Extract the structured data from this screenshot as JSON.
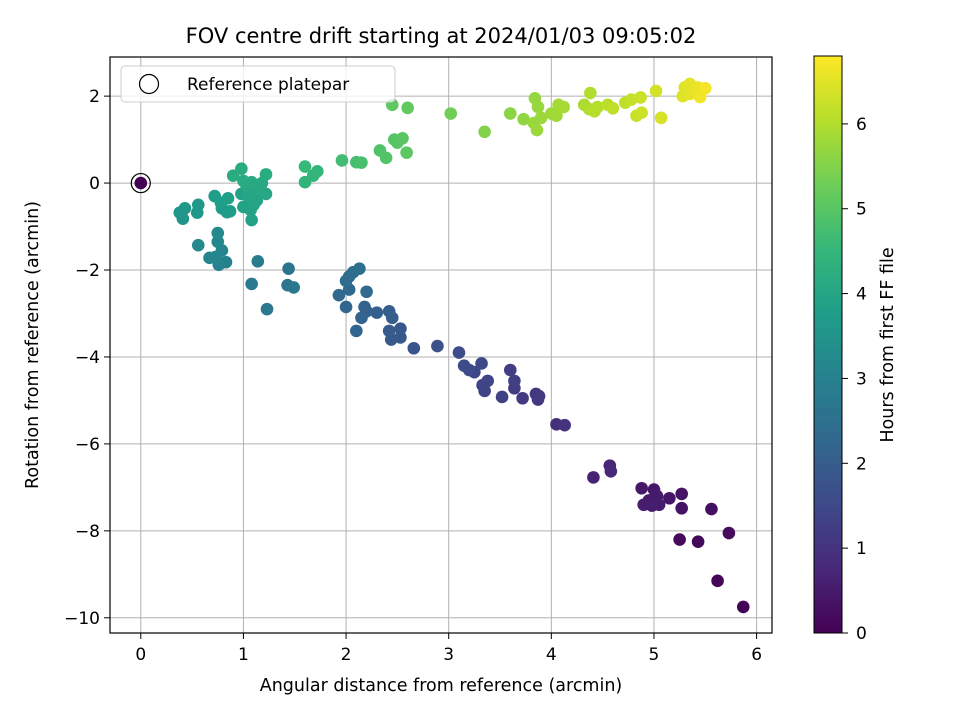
{
  "chart_data": {
    "type": "scatter",
    "title": "FOV centre drift starting at 2024/01/03 09:05:02",
    "xlabel": "Angular distance from reference (arcmin)",
    "ylabel": "Rotation from reference (arcmin)",
    "xlim": [
      -0.3,
      6.15
    ],
    "ylim": [
      -10.35,
      2.9
    ],
    "xticks": [
      0,
      1,
      2,
      3,
      4,
      5,
      6
    ],
    "yticks": [
      -10,
      -8,
      -6,
      -4,
      -2,
      0,
      2
    ],
    "grid": true,
    "legend": {
      "placement": "top-left",
      "entries": [
        "Reference platepar"
      ]
    },
    "colorbar": {
      "label": "Hours from first FF file",
      "range": [
        0,
        6.8
      ],
      "ticks": [
        0,
        1,
        2,
        3,
        4,
        5,
        6
      ],
      "colormap": "viridis"
    },
    "reference_point": {
      "x": 0,
      "y": 0,
      "color_value": 0
    },
    "points": [
      {
        "x": 5.87,
        "y": -9.75,
        "h": 0.05
      },
      {
        "x": 5.62,
        "y": -9.15,
        "h": 0.1
      },
      {
        "x": 5.43,
        "y": -8.25,
        "h": 0.15
      },
      {
        "x": 5.25,
        "y": -8.2,
        "h": 0.2
      },
      {
        "x": 5.73,
        "y": -8.05,
        "h": 0.22
      },
      {
        "x": 5.56,
        "y": -7.5,
        "h": 0.3
      },
      {
        "x": 5.27,
        "y": -7.48,
        "h": 0.33
      },
      {
        "x": 5.27,
        "y": -7.15,
        "h": 0.36
      },
      {
        "x": 5.15,
        "y": -7.25,
        "h": 0.4
      },
      {
        "x": 5.0,
        "y": -7.05,
        "h": 0.42
      },
      {
        "x": 4.88,
        "y": -7.02,
        "h": 0.45
      },
      {
        "x": 4.95,
        "y": -7.3,
        "h": 0.47
      },
      {
        "x": 5.03,
        "y": -7.2,
        "h": 0.5
      },
      {
        "x": 5.05,
        "y": -7.4,
        "h": 0.52
      },
      {
        "x": 4.9,
        "y": -7.4,
        "h": 0.55
      },
      {
        "x": 4.98,
        "y": -7.42,
        "h": 0.57
      },
      {
        "x": 4.41,
        "y": -6.77,
        "h": 0.65
      },
      {
        "x": 4.57,
        "y": -6.5,
        "h": 0.72
      },
      {
        "x": 4.58,
        "y": -6.63,
        "h": 0.78
      },
      {
        "x": 4.05,
        "y": -5.55,
        "h": 0.95
      },
      {
        "x": 4.13,
        "y": -5.57,
        "h": 1.0
      },
      {
        "x": 3.87,
        "y": -4.98,
        "h": 1.1
      },
      {
        "x": 3.85,
        "y": -4.85,
        "h": 1.13
      },
      {
        "x": 3.88,
        "y": -4.9,
        "h": 1.16
      },
      {
        "x": 3.72,
        "y": -4.95,
        "h": 1.2
      },
      {
        "x": 3.64,
        "y": -4.72,
        "h": 1.23
      },
      {
        "x": 3.6,
        "y": -4.3,
        "h": 1.26
      },
      {
        "x": 3.64,
        "y": -4.55,
        "h": 1.3
      },
      {
        "x": 3.52,
        "y": -4.92,
        "h": 1.33
      },
      {
        "x": 3.35,
        "y": -4.78,
        "h": 1.37
      },
      {
        "x": 3.33,
        "y": -4.65,
        "h": 1.4
      },
      {
        "x": 3.38,
        "y": -4.55,
        "h": 1.43
      },
      {
        "x": 3.25,
        "y": -4.35,
        "h": 1.46
      },
      {
        "x": 3.32,
        "y": -4.15,
        "h": 1.5
      },
      {
        "x": 3.2,
        "y": -4.3,
        "h": 1.53
      },
      {
        "x": 3.15,
        "y": -4.2,
        "h": 1.56
      },
      {
        "x": 3.1,
        "y": -3.9,
        "h": 1.6
      },
      {
        "x": 2.89,
        "y": -3.75,
        "h": 1.7
      },
      {
        "x": 2.66,
        "y": -3.8,
        "h": 1.8
      },
      {
        "x": 2.53,
        "y": -3.55,
        "h": 1.85
      },
      {
        "x": 2.53,
        "y": -3.35,
        "h": 1.88
      },
      {
        "x": 2.44,
        "y": -3.6,
        "h": 1.92
      },
      {
        "x": 2.42,
        "y": -3.4,
        "h": 1.95
      },
      {
        "x": 2.45,
        "y": -3.1,
        "h": 2.0
      },
      {
        "x": 2.42,
        "y": -2.95,
        "h": 2.03
      },
      {
        "x": 2.3,
        "y": -2.98,
        "h": 2.07
      },
      {
        "x": 2.2,
        "y": -2.95,
        "h": 2.1
      },
      {
        "x": 2.18,
        "y": -2.85,
        "h": 2.13
      },
      {
        "x": 2.15,
        "y": -3.1,
        "h": 2.17
      },
      {
        "x": 2.1,
        "y": -3.4,
        "h": 2.2
      },
      {
        "x": 2.0,
        "y": -2.85,
        "h": 2.23
      },
      {
        "x": 1.93,
        "y": -2.58,
        "h": 2.27
      },
      {
        "x": 2.03,
        "y": -2.45,
        "h": 2.3
      },
      {
        "x": 2.2,
        "y": -2.5,
        "h": 2.33
      },
      {
        "x": 2.03,
        "y": -2.15,
        "h": 2.37
      },
      {
        "x": 2.0,
        "y": -2.25,
        "h": 2.4
      },
      {
        "x": 2.07,
        "y": -2.05,
        "h": 2.43
      },
      {
        "x": 2.13,
        "y": -1.97,
        "h": 2.47
      },
      {
        "x": 1.44,
        "y": -1.97,
        "h": 2.6
      },
      {
        "x": 1.43,
        "y": -2.35,
        "h": 2.65
      },
      {
        "x": 1.49,
        "y": -2.4,
        "h": 2.7
      },
      {
        "x": 1.23,
        "y": -2.9,
        "h": 2.75
      },
      {
        "x": 1.08,
        "y": -2.32,
        "h": 2.8
      },
      {
        "x": 1.14,
        "y": -1.8,
        "h": 2.85
      },
      {
        "x": 0.83,
        "y": -1.82,
        "h": 3.0
      },
      {
        "x": 0.76,
        "y": -1.88,
        "h": 3.03
      },
      {
        "x": 0.79,
        "y": -1.55,
        "h": 3.07
      },
      {
        "x": 0.67,
        "y": -1.72,
        "h": 3.1
      },
      {
        "x": 0.73,
        "y": -1.7,
        "h": 3.13
      },
      {
        "x": 0.75,
        "y": -1.35,
        "h": 3.17
      },
      {
        "x": 0.75,
        "y": -1.15,
        "h": 3.2
      },
      {
        "x": 0.56,
        "y": -1.43,
        "h": 3.25
      },
      {
        "x": 0.41,
        "y": -0.82,
        "h": 3.5
      },
      {
        "x": 0.38,
        "y": -0.68,
        "h": 3.55
      },
      {
        "x": 0.43,
        "y": -0.58,
        "h": 3.6
      },
      {
        "x": 0.55,
        "y": -0.68,
        "h": 3.62
      },
      {
        "x": 0.56,
        "y": -0.5,
        "h": 3.65
      },
      {
        "x": 0.79,
        "y": -0.58,
        "h": 3.7
      },
      {
        "x": 0.84,
        "y": -0.67,
        "h": 3.72
      },
      {
        "x": 0.87,
        "y": -0.65,
        "h": 3.75
      },
      {
        "x": 0.72,
        "y": -0.3,
        "h": 3.78
      },
      {
        "x": 0.78,
        "y": -0.45,
        "h": 3.8
      },
      {
        "x": 0.85,
        "y": -0.35,
        "h": 3.83
      },
      {
        "x": 0.98,
        "y": -0.25,
        "h": 3.86
      },
      {
        "x": 1.03,
        "y": -0.15,
        "h": 3.89
      },
      {
        "x": 1.08,
        "y": -0.85,
        "h": 3.9
      },
      {
        "x": 1.0,
        "y": -0.55,
        "h": 3.92
      },
      {
        "x": 1.07,
        "y": -0.62,
        "h": 3.94
      },
      {
        "x": 1.1,
        "y": -0.5,
        "h": 3.96
      },
      {
        "x": 1.13,
        "y": -0.4,
        "h": 3.98
      },
      {
        "x": 1.05,
        "y": -0.3,
        "h": 4.0
      },
      {
        "x": 1.12,
        "y": -0.2,
        "h": 4.02
      },
      {
        "x": 1.17,
        "y": -0.15,
        "h": 4.04
      },
      {
        "x": 1.22,
        "y": -0.25,
        "h": 4.06
      },
      {
        "x": 1.18,
        "y": 0.0,
        "h": 4.08
      },
      {
        "x": 1.08,
        "y": 0.02,
        "h": 4.1
      },
      {
        "x": 1.03,
        "y": -0.05,
        "h": 4.12
      },
      {
        "x": 1.0,
        "y": 0.05,
        "h": 4.14
      },
      {
        "x": 0.98,
        "y": 0.33,
        "h": 4.16
      },
      {
        "x": 0.9,
        "y": 0.17,
        "h": 4.18
      },
      {
        "x": 1.22,
        "y": 0.2,
        "h": 4.2
      },
      {
        "x": 1.6,
        "y": 0.02,
        "h": 4.4
      },
      {
        "x": 1.68,
        "y": 0.17,
        "h": 4.45
      },
      {
        "x": 1.72,
        "y": 0.27,
        "h": 4.5
      },
      {
        "x": 1.6,
        "y": 0.38,
        "h": 4.55
      },
      {
        "x": 1.96,
        "y": 0.52,
        "h": 4.7
      },
      {
        "x": 2.1,
        "y": 0.48,
        "h": 4.75
      },
      {
        "x": 2.15,
        "y": 0.47,
        "h": 4.8
      },
      {
        "x": 2.33,
        "y": 0.75,
        "h": 4.9
      },
      {
        "x": 2.39,
        "y": 0.58,
        "h": 4.93
      },
      {
        "x": 2.47,
        "y": 1.0,
        "h": 4.97
      },
      {
        "x": 2.5,
        "y": 0.93,
        "h": 5.0
      },
      {
        "x": 2.55,
        "y": 1.03,
        "h": 5.03
      },
      {
        "x": 2.59,
        "y": 0.7,
        "h": 5.06
      },
      {
        "x": 2.45,
        "y": 1.8,
        "h": 5.1
      },
      {
        "x": 2.6,
        "y": 1.73,
        "h": 5.13
      },
      {
        "x": 3.02,
        "y": 1.6,
        "h": 5.3
      },
      {
        "x": 3.35,
        "y": 1.18,
        "h": 5.5
      },
      {
        "x": 3.6,
        "y": 1.6,
        "h": 5.6
      },
      {
        "x": 3.73,
        "y": 1.47,
        "h": 5.65
      },
      {
        "x": 3.84,
        "y": 1.95,
        "h": 5.7
      },
      {
        "x": 3.87,
        "y": 1.75,
        "h": 5.72
      },
      {
        "x": 3.83,
        "y": 1.38,
        "h": 5.74
      },
      {
        "x": 3.86,
        "y": 1.22,
        "h": 5.76
      },
      {
        "x": 3.9,
        "y": 1.5,
        "h": 5.78
      },
      {
        "x": 4.0,
        "y": 1.6,
        "h": 5.8
      },
      {
        "x": 4.05,
        "y": 1.55,
        "h": 5.83
      },
      {
        "x": 4.07,
        "y": 1.8,
        "h": 5.86
      },
      {
        "x": 4.12,
        "y": 1.75,
        "h": 5.9
      },
      {
        "x": 4.32,
        "y": 1.8,
        "h": 5.95
      },
      {
        "x": 4.37,
        "y": 1.7,
        "h": 5.98
      },
      {
        "x": 4.38,
        "y": 2.07,
        "h": 6.0
      },
      {
        "x": 4.45,
        "y": 1.75,
        "h": 6.03
      },
      {
        "x": 4.42,
        "y": 1.65,
        "h": 6.06
      },
      {
        "x": 4.55,
        "y": 1.8,
        "h": 6.1
      },
      {
        "x": 4.6,
        "y": 1.72,
        "h": 6.13
      },
      {
        "x": 4.72,
        "y": 1.85,
        "h": 6.16
      },
      {
        "x": 4.78,
        "y": 1.92,
        "h": 6.2
      },
      {
        "x": 4.83,
        "y": 1.55,
        "h": 6.23
      },
      {
        "x": 4.87,
        "y": 1.97,
        "h": 6.26
      },
      {
        "x": 4.88,
        "y": 1.62,
        "h": 6.3
      },
      {
        "x": 5.02,
        "y": 2.12,
        "h": 6.35
      },
      {
        "x": 5.07,
        "y": 1.5,
        "h": 6.38
      },
      {
        "x": 5.28,
        "y": 2.0,
        "h": 6.45
      },
      {
        "x": 5.3,
        "y": 2.2,
        "h": 6.48
      },
      {
        "x": 5.35,
        "y": 2.05,
        "h": 6.52
      },
      {
        "x": 5.35,
        "y": 2.28,
        "h": 6.55
      },
      {
        "x": 5.4,
        "y": 2.1,
        "h": 6.58
      },
      {
        "x": 5.43,
        "y": 2.2,
        "h": 6.62
      },
      {
        "x": 5.45,
        "y": 1.98,
        "h": 6.66
      },
      {
        "x": 5.5,
        "y": 2.18,
        "h": 6.7
      }
    ]
  }
}
